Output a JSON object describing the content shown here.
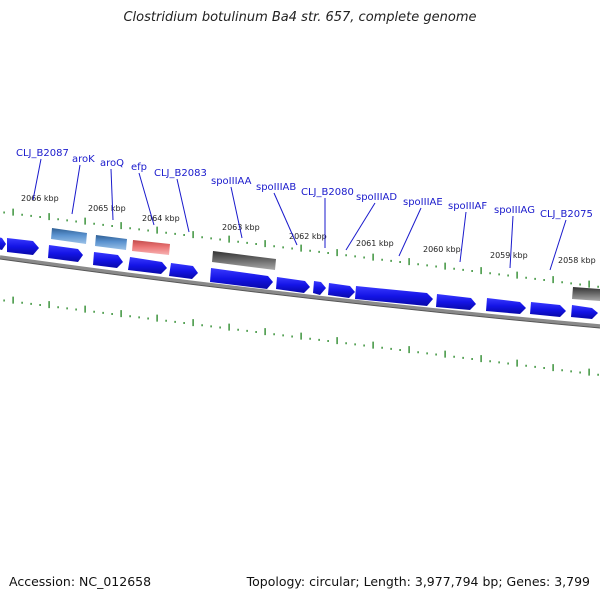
{
  "title": "Clostridium botulinum Ba4 str. 657, complete genome",
  "footer": {
    "accession": "Accession: NC_012658",
    "summary": "Topology: circular; Length: 3,977,794 bp; Genes: 3,799"
  },
  "colors": {
    "cds": "#1414e6",
    "cds_light": "#4f85c4",
    "rna": "#e87070",
    "pseudo": "#666666",
    "tick": "#2e8b2e",
    "backbone": "#808080",
    "label": "#1a1acc"
  },
  "scale_labels": [
    "2066 kbp",
    "2065 kbp",
    "2064 kbp",
    "2063 kbp",
    "2062 kbp",
    "2061 kbp",
    "2060 kbp",
    "2059 kbp",
    "2058 kbp"
  ],
  "gene_labels": [
    "CLJ_B2087",
    "aroK",
    "aroQ",
    "efp",
    "CLJ_B2083",
    "spoIIIAA",
    "spoIIIAB",
    "CLJ_B2080",
    "spoIIIAD",
    "spoIIIAE",
    "spoIIIAF",
    "spoIIIAG",
    "CLJ_B2075"
  ]
}
